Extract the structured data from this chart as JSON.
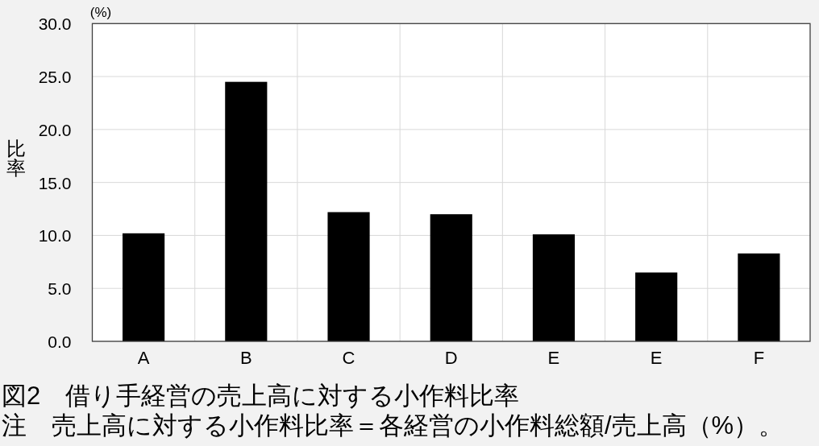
{
  "chart_data": {
    "type": "bar",
    "title": "図2　借り手経営の売上高に対する小作料比率",
    "ylabel": "比率",
    "annotations": [
      "(%)",
      "注　売上高に対する小作料比率＝各経営の小作料総額/売上高（%）。"
    ],
    "categories": [
      "A",
      "B",
      "C",
      "D",
      "E",
      "E",
      "F"
    ],
    "values": [
      10.2,
      24.5,
      12.2,
      12.0,
      10.1,
      6.5,
      8.3
    ],
    "color": "#000000",
    "ylim": [
      0,
      30
    ],
    "yticks": [
      {
        "value": 0,
        "label": "0.0"
      },
      {
        "value": 5,
        "label": "5.0"
      },
      {
        "value": 10,
        "label": "10.0"
      },
      {
        "value": 15,
        "label": "15.0"
      },
      {
        "value": 20,
        "label": "20.0"
      },
      {
        "value": 25,
        "label": "25.0"
      },
      {
        "value": 30,
        "label": "30.0"
      }
    ],
    "grid": true
  }
}
